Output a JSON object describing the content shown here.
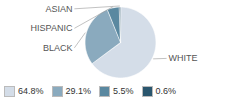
{
  "chart_data": {
    "type": "pie",
    "categories": [
      "WHITE",
      "BLACK",
      "HISPANIC",
      "ASIAN"
    ],
    "values": [
      64.8,
      29.1,
      5.5,
      0.6
    ],
    "value_labels": [
      "64.8%",
      "29.1%",
      "5.5%",
      "0.6%"
    ],
    "colors": [
      "#d4dde8",
      "#8aaabe",
      "#5a88a0",
      "#2a566e"
    ],
    "legend": "lower left"
  }
}
